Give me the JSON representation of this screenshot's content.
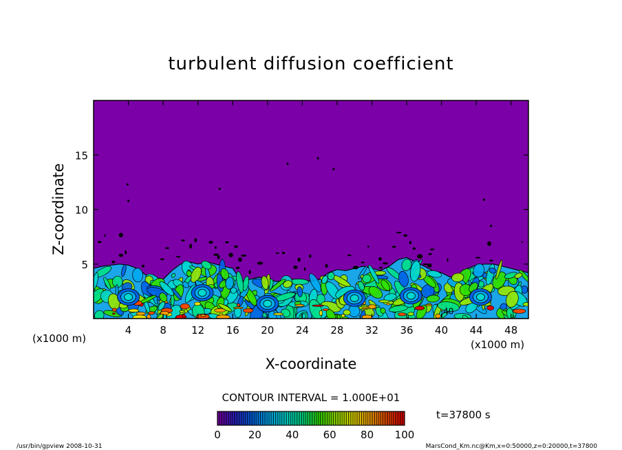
{
  "chart_data": {
    "type": "heatmap",
    "title": "turbulent diffusion coefficient",
    "xlabel": "X-coordinate",
    "ylabel": "Z-coordinate",
    "x_unit_left": "(x1000 m)",
    "x_unit_right": "(x1000 m)",
    "xlim": [
      0,
      50
    ],
    "ylim": [
      0,
      20
    ],
    "x_ticks": [
      "4",
      "8",
      "12",
      "16",
      "20",
      "24",
      "28",
      "32",
      "36",
      "40",
      "44",
      "48"
    ],
    "x_tick_values": [
      4,
      8,
      12,
      16,
      20,
      24,
      28,
      32,
      36,
      40,
      44,
      48
    ],
    "y_ticks": [
      "5",
      "10",
      "15"
    ],
    "y_tick_values": [
      5,
      10,
      15
    ],
    "background_value": 0,
    "boundary_layer_top": [
      [
        0,
        4.6
      ],
      [
        1,
        4.8
      ],
      [
        2,
        4.9
      ],
      [
        3,
        5.0
      ],
      [
        4,
        4.9
      ],
      [
        5,
        4.6
      ],
      [
        6,
        4.0
      ],
      [
        7,
        3.8
      ],
      [
        8,
        3.6
      ],
      [
        9,
        4.4
      ],
      [
        10,
        5.0
      ],
      [
        11,
        5.2
      ],
      [
        12,
        5.0
      ],
      [
        13,
        5.2
      ],
      [
        14,
        5.0
      ],
      [
        15,
        4.8
      ],
      [
        16,
        4.6
      ],
      [
        17,
        3.4
      ],
      [
        18,
        3.6
      ],
      [
        19,
        3.8
      ],
      [
        20,
        3.6
      ],
      [
        21,
        3.4
      ],
      [
        22,
        3.5
      ],
      [
        23,
        3.6
      ],
      [
        24,
        3.6
      ],
      [
        25,
        3.4
      ],
      [
        26,
        3.6
      ],
      [
        27,
        4.2
      ],
      [
        28,
        4.5
      ],
      [
        29,
        4.4
      ],
      [
        30,
        4.6
      ],
      [
        31,
        4.8
      ],
      [
        32,
        4.6
      ],
      [
        33,
        4.4
      ],
      [
        34,
        4.8
      ],
      [
        35,
        5.4
      ],
      [
        36,
        5.6
      ],
      [
        37,
        5.2
      ],
      [
        38,
        4.8
      ],
      [
        39,
        4.4
      ],
      [
        40,
        4.2
      ],
      [
        41,
        3.8
      ],
      [
        42,
        4.0
      ],
      [
        43,
        4.6
      ],
      [
        44,
        4.9
      ],
      [
        45,
        5.0
      ],
      [
        46,
        5.0
      ],
      [
        47,
        4.8
      ],
      [
        48,
        4.6
      ],
      [
        49,
        4.4
      ],
      [
        50,
        4.2
      ]
    ],
    "contour_annotation": "40",
    "contour_interval_label": "CONTOUR INTERVAL = 1.000E+01",
    "time_label": "t=37800 s",
    "colorbar": {
      "min": 0,
      "max": 100,
      "tick_labels": [
        "0",
        "20",
        "40",
        "60",
        "80",
        "100"
      ],
      "tick_values": [
        0,
        20,
        40,
        60,
        80,
        100
      ],
      "colors": [
        "#7a00a6",
        "#2a22c8",
        "#0063e6",
        "#00aaee",
        "#00d8d0",
        "#00e08a",
        "#30e000",
        "#9ae800",
        "#e6e000",
        "#f6a000",
        "#ef4a00",
        "#e00000"
      ]
    }
  },
  "footer": {
    "left": "/usr/bin/gpview  2008-10-31",
    "right": "MarsCond_Km.nc@Km,x=0:50000,z=0:20000,t=37800"
  }
}
